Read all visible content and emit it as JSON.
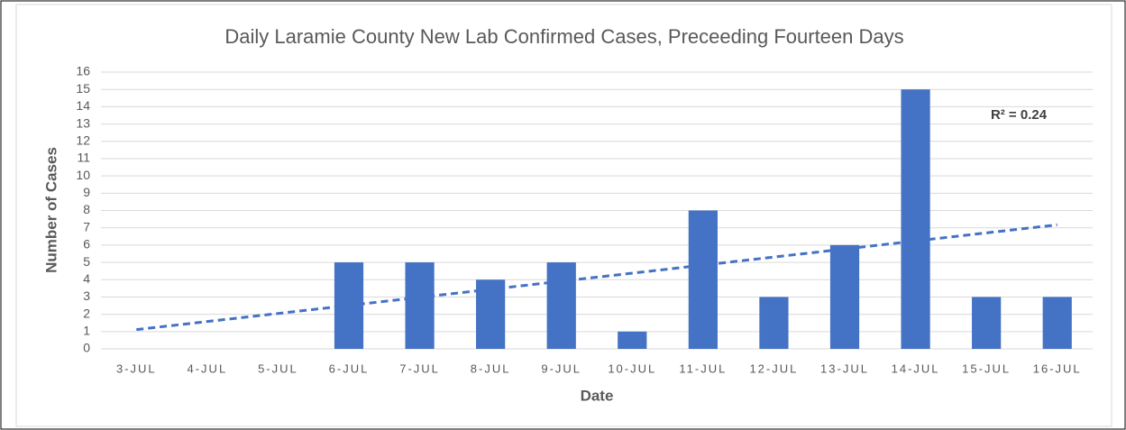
{
  "chart_data": {
    "type": "bar",
    "title": "Daily Laramie County New Lab Confirmed Cases, Preceeding Fourteen Days",
    "x_label": "Date",
    "y_label": "Number of Cases",
    "categories": [
      "3-JUL",
      "4-JUL",
      "5-JUL",
      "6-JUL",
      "7-JUL",
      "8-JUL",
      "9-JUL",
      "10-JUL",
      "11-JUL",
      "12-JUL",
      "13-JUL",
      "14-JUL",
      "15-JUL",
      "16-JUL"
    ],
    "values": [
      0,
      0,
      0,
      5,
      5,
      4,
      5,
      1,
      8,
      3,
      6,
      15,
      3,
      3
    ],
    "color": "#4472c4",
    "ylim": [
      0,
      16
    ],
    "yticks": [
      0,
      1,
      2,
      3,
      4,
      5,
      6,
      7,
      8,
      9,
      10,
      11,
      12,
      13,
      14,
      15,
      16
    ],
    "grid": true,
    "trendline": "linear",
    "annotation": "R² = 0.24"
  }
}
